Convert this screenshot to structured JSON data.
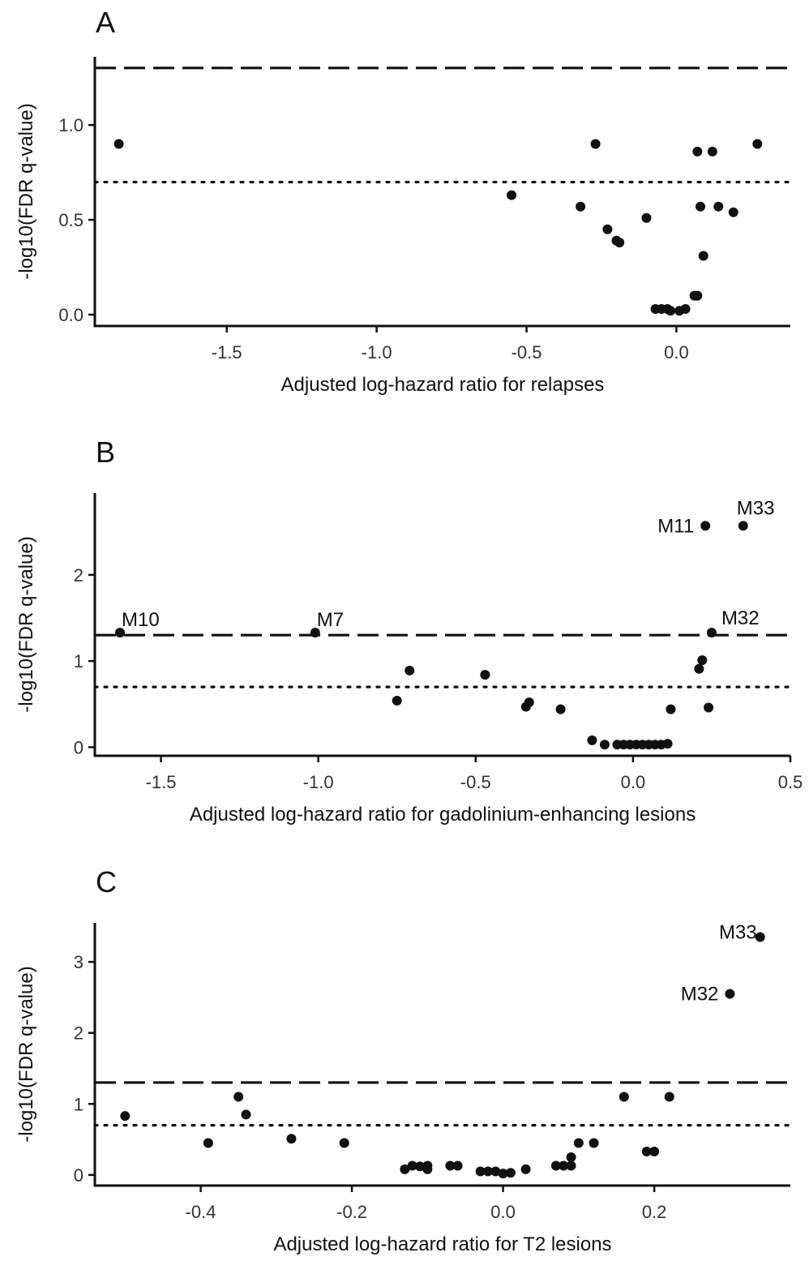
{
  "chart_data": [
    {
      "type": "scatter",
      "panel_label": "A",
      "xlabel": "Adjusted log-hazard ratio for relapses",
      "ylabel": "-log10(FDR q-value)",
      "xlim": [
        -1.94,
        0.38
      ],
      "ylim": [
        -0.06,
        1.36
      ],
      "xticks": [
        -1.5,
        -1.0,
        -0.5,
        0.0
      ],
      "xtick_labels": [
        "-1.5",
        "-1.0",
        "-0.5",
        "0.0"
      ],
      "yticks": [
        0.0,
        0.5,
        1.0
      ],
      "ytick_labels": [
        "0.0",
        "0.5",
        "1.0"
      ],
      "hlines": [
        {
          "y": 1.301,
          "style": "dashed"
        },
        {
          "y": 0.699,
          "style": "dotted"
        }
      ],
      "points": [
        {
          "x": -1.86,
          "y": 0.9
        },
        {
          "x": -0.55,
          "y": 0.63
        },
        {
          "x": -0.32,
          "y": 0.57
        },
        {
          "x": -0.27,
          "y": 0.9
        },
        {
          "x": -0.23,
          "y": 0.45
        },
        {
          "x": -0.2,
          "y": 0.39
        },
        {
          "x": -0.19,
          "y": 0.38
        },
        {
          "x": -0.1,
          "y": 0.51
        },
        {
          "x": -0.07,
          "y": 0.03
        },
        {
          "x": -0.05,
          "y": 0.03
        },
        {
          "x": -0.03,
          "y": 0.03
        },
        {
          "x": -0.02,
          "y": 0.02
        },
        {
          "x": 0.01,
          "y": 0.02
        },
        {
          "x": 0.03,
          "y": 0.03
        },
        {
          "x": 0.06,
          "y": 0.1
        },
        {
          "x": 0.07,
          "y": 0.1
        },
        {
          "x": 0.07,
          "y": 0.86
        },
        {
          "x": 0.08,
          "y": 0.57
        },
        {
          "x": 0.09,
          "y": 0.31
        },
        {
          "x": 0.12,
          "y": 0.86
        },
        {
          "x": 0.14,
          "y": 0.57
        },
        {
          "x": 0.19,
          "y": 0.54
        },
        {
          "x": 0.27,
          "y": 0.9
        }
      ]
    },
    {
      "type": "scatter",
      "panel_label": "B",
      "xlabel": "Adjusted log-hazard ratio for gadolinium-enhancing lesions",
      "ylabel": "-log10(FDR q-value)",
      "xlim": [
        -1.71,
        0.5
      ],
      "ylim": [
        -0.1,
        2.95
      ],
      "xticks": [
        -1.5,
        -1.0,
        -0.5,
        0.0,
        0.5
      ],
      "xtick_labels": [
        "-1.5",
        "-1.0",
        "-0.5",
        "0.0",
        "0.5"
      ],
      "yticks": [
        0,
        1,
        2
      ],
      "ytick_labels": [
        "0",
        "1",
        "2"
      ],
      "hlines": [
        {
          "y": 1.301,
          "style": "dashed"
        },
        {
          "y": 0.699,
          "style": "dotted"
        }
      ],
      "points": [
        {
          "x": -1.63,
          "y": 1.33,
          "label": "M10"
        },
        {
          "x": -1.01,
          "y": 1.33,
          "label": "M7"
        },
        {
          "x": -0.75,
          "y": 0.54
        },
        {
          "x": -0.71,
          "y": 0.89
        },
        {
          "x": -0.47,
          "y": 0.84
        },
        {
          "x": -0.34,
          "y": 0.47
        },
        {
          "x": -0.33,
          "y": 0.52
        },
        {
          "x": -0.23,
          "y": 0.44
        },
        {
          "x": -0.13,
          "y": 0.08
        },
        {
          "x": -0.09,
          "y": 0.03
        },
        {
          "x": -0.05,
          "y": 0.03
        },
        {
          "x": -0.03,
          "y": 0.03
        },
        {
          "x": -0.01,
          "y": 0.03
        },
        {
          "x": 0.01,
          "y": 0.03
        },
        {
          "x": 0.03,
          "y": 0.03
        },
        {
          "x": 0.05,
          "y": 0.03
        },
        {
          "x": 0.07,
          "y": 0.03
        },
        {
          "x": 0.09,
          "y": 0.03
        },
        {
          "x": 0.11,
          "y": 0.04
        },
        {
          "x": 0.12,
          "y": 0.44
        },
        {
          "x": 0.21,
          "y": 0.91
        },
        {
          "x": 0.22,
          "y": 1.01
        },
        {
          "x": 0.23,
          "y": 2.57,
          "label": "M11"
        },
        {
          "x": 0.24,
          "y": 0.46
        },
        {
          "x": 0.25,
          "y": 1.33,
          "label": "M32"
        },
        {
          "x": 0.35,
          "y": 2.57,
          "label": "M33"
        }
      ]
    },
    {
      "type": "scatter",
      "panel_label": "C",
      "xlabel": "Adjusted log-hazard ratio for T2 lesions",
      "ylabel": "-log10(FDR q-value)",
      "xlim": [
        -0.54,
        0.38
      ],
      "ylim": [
        -0.15,
        3.55
      ],
      "xticks": [
        -0.4,
        -0.2,
        0.0,
        0.2
      ],
      "xtick_labels": [
        "-0.4",
        "-0.2",
        "0.0",
        "0.2"
      ],
      "yticks": [
        0,
        1,
        2,
        3
      ],
      "ytick_labels": [
        "0",
        "1",
        "2",
        "3"
      ],
      "hlines": [
        {
          "y": 1.301,
          "style": "dashed"
        },
        {
          "y": 0.699,
          "style": "dotted"
        }
      ],
      "points": [
        {
          "x": -0.5,
          "y": 0.83
        },
        {
          "x": -0.39,
          "y": 0.45
        },
        {
          "x": -0.35,
          "y": 1.1
        },
        {
          "x": -0.34,
          "y": 0.85
        },
        {
          "x": -0.28,
          "y": 0.51
        },
        {
          "x": -0.21,
          "y": 0.45
        },
        {
          "x": -0.13,
          "y": 0.08
        },
        {
          "x": -0.12,
          "y": 0.13
        },
        {
          "x": -0.11,
          "y": 0.12
        },
        {
          "x": -0.1,
          "y": 0.08
        },
        {
          "x": -0.1,
          "y": 0.13
        },
        {
          "x": -0.07,
          "y": 0.13
        },
        {
          "x": -0.06,
          "y": 0.13
        },
        {
          "x": -0.03,
          "y": 0.05
        },
        {
          "x": -0.02,
          "y": 0.05
        },
        {
          "x": -0.01,
          "y": 0.05
        },
        {
          "x": 0.0,
          "y": 0.02
        },
        {
          "x": 0.01,
          "y": 0.03
        },
        {
          "x": 0.03,
          "y": 0.08
        },
        {
          "x": 0.07,
          "y": 0.13
        },
        {
          "x": 0.08,
          "y": 0.13
        },
        {
          "x": 0.09,
          "y": 0.13
        },
        {
          "x": 0.09,
          "y": 0.25
        },
        {
          "x": 0.1,
          "y": 0.45
        },
        {
          "x": 0.12,
          "y": 0.45
        },
        {
          "x": 0.16,
          "y": 1.1
        },
        {
          "x": 0.19,
          "y": 0.33
        },
        {
          "x": 0.2,
          "y": 0.33
        },
        {
          "x": 0.22,
          "y": 1.1
        },
        {
          "x": 0.3,
          "y": 2.55,
          "label": "M32"
        },
        {
          "x": 0.34,
          "y": 3.35,
          "label": "M33"
        }
      ]
    }
  ]
}
